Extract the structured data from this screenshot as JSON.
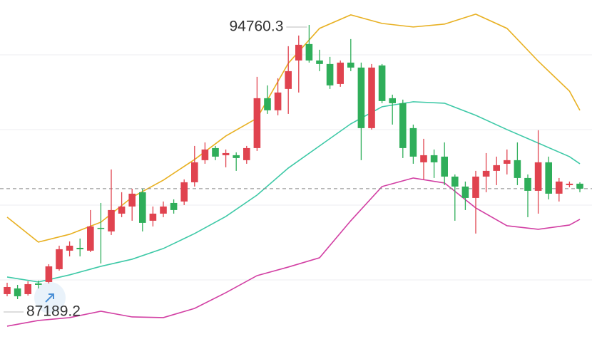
{
  "chart_data": {
    "type": "candlestick",
    "high_label": "94760.3",
    "low_label": "87189.2",
    "up_color": "#e0434f",
    "down_color": "#2fae5a",
    "categories": [
      null,
      null,
      null,
      null,
      null,
      null,
      null,
      null,
      null,
      null,
      null,
      null,
      null,
      null,
      null,
      null,
      null,
      null,
      null,
      null,
      null,
      null,
      null,
      null,
      null,
      null,
      null,
      null,
      null,
      null,
      null,
      null,
      null,
      null,
      null,
      null,
      null,
      null,
      null,
      null,
      null,
      null,
      null,
      null,
      null,
      null,
      null,
      null,
      null,
      null,
      null,
      null,
      null,
      null,
      null,
      null
    ],
    "open": [
      87328,
      87485,
      87328,
      87623,
      87662,
      88016,
      88528,
      88606,
      88528,
      89157,
      89059,
      89550,
      89747,
      90141,
      89354,
      89550,
      89845,
      89885,
      90416,
      91026,
      91360,
      91163,
      91163,
      91026,
      91360,
      92737,
      92403,
      92993,
      93779,
      94232,
      93779,
      93681,
      93130,
      93720,
      93583,
      91911,
      93642,
      92737,
      92599,
      91911,
      90967,
      91163,
      91124,
      90573,
      90298,
      89983,
      90573,
      90731,
      90927,
      91026,
      90534,
      90180,
      90967,
      90101,
      90337,
      90377
    ],
    "high": [
      87642,
      87583,
      87682,
      87701,
      88154,
      88665,
      88783,
      88862,
      89649,
      89845,
      90770,
      90141,
      90239,
      90239,
      89747,
      89885,
      89944,
      90495,
      91419,
      91517,
      91419,
      91321,
      91242,
      91419,
      93327,
      93091,
      93288,
      94173,
      94468,
      94760.3,
      94075,
      93878,
      93779,
      94370,
      93720,
      93681,
      93681,
      92835,
      92698,
      92009,
      91616,
      91321,
      91517,
      90632,
      90436,
      90731,
      91222,
      91124,
      91321,
      91517,
      90632,
      91852,
      91124,
      90534,
      90436,
      90416
    ],
    "low": [
      87269,
      87189.2,
      87288,
      87485,
      87623,
      87977,
      88370,
      88370,
      88488,
      88174,
      88960,
      89452,
      89354,
      89059,
      89196,
      89452,
      89550,
      89786,
      90298,
      90927,
      91026,
      90829,
      90731,
      90927,
      91281,
      92304,
      92265,
      92304,
      92894,
      93720,
      93484,
      92993,
      93052,
      93484,
      91026,
      91871,
      92599,
      92009,
      91085,
      90927,
      90495,
      90534,
      90337,
      89354,
      89649,
      89000,
      90141,
      90337,
      90632,
      90337,
      89452,
      89550,
      89944,
      89885,
      90278,
      90141
    ],
    "close": [
      87524,
      87269,
      87603,
      87583,
      88095,
      88567,
      88665,
      88567,
      89196,
      89137,
      89649,
      89747,
      90101,
      89295,
      89550,
      89747,
      89649,
      90416,
      90967,
      91321,
      91124,
      91222,
      91085,
      91360,
      92737,
      92403,
      92894,
      93484,
      94212,
      93779,
      93681,
      93091,
      93720,
      93583,
      91911,
      93583,
      92658,
      92599,
      91360,
      91124,
      91163,
      90967,
      90573,
      90298,
      89983,
      90573,
      90731,
      90888,
      91026,
      90534,
      90180,
      90967,
      90101,
      90436,
      90377,
      90239
    ],
    "series": [
      {
        "color": "#e8b021",
        "x": [
          0,
          3,
          6,
          9,
          12,
          15,
          18,
          21,
          24,
          27,
          30,
          33,
          36,
          39,
          42,
          45,
          48,
          51,
          54,
          55
        ],
        "values": [
          89452,
          88764,
          88980,
          89314,
          90003,
          90475,
          91045,
          91694,
          92186,
          93701,
          94665,
          95038,
          94802,
          94704,
          94783,
          95058,
          94665,
          93760,
          92934,
          92403
        ]
      },
      {
        "color": "#3ec9a7",
        "x": [
          0,
          3,
          6,
          9,
          12,
          15,
          18,
          21,
          24,
          27,
          30,
          33,
          36,
          39,
          42,
          45,
          48,
          51,
          54,
          55
        ],
        "values": [
          87800,
          87662,
          87859,
          88095,
          88292,
          88587,
          89000,
          89472,
          90062,
          90809,
          91419,
          92029,
          92501,
          92639,
          92599,
          92265,
          91871,
          91498,
          91124,
          90927
        ]
      },
      {
        "color": "#d23fa3",
        "x": [
          0,
          3,
          6,
          9,
          12,
          15,
          18,
          21,
          24,
          27,
          30,
          33,
          36,
          39,
          42,
          45,
          48,
          51,
          54,
          55
        ],
        "values": [
          86443,
          86600,
          86679,
          86856,
          86698,
          86679,
          86934,
          87367,
          87839,
          88075,
          88331,
          89354,
          90298,
          90534,
          90396,
          89708,
          89216,
          89118,
          89236,
          89393
        ]
      }
    ]
  }
}
